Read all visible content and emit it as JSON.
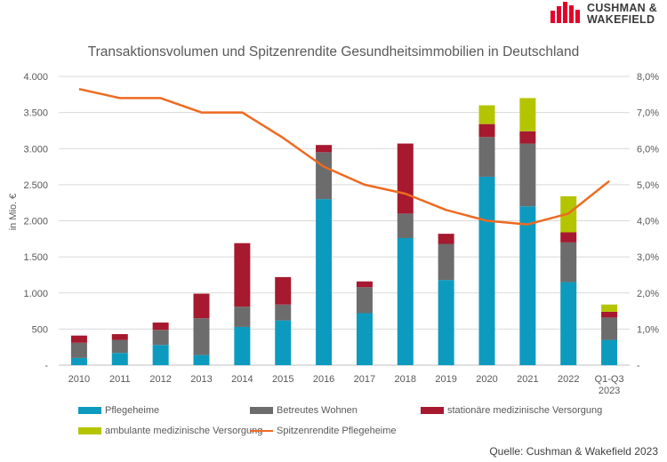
{
  "brand": {
    "name_line1": "CUSHMAN &",
    "name_line2": "WAKEFIELD",
    "color": "#E4002B"
  },
  "source": "Quelle: Cushman & Wakefield 2023",
  "chart_data": {
    "type": "bar",
    "stacked": true,
    "title": "Transaktionsvolumen und Spitzenrendite Gesundheitsimmobilien in Deutschland",
    "ylabel": "in Mio. €",
    "ylim": [
      0,
      4000
    ],
    "y_ticks": [
      0,
      500,
      1000,
      1500,
      2000,
      2500,
      3000,
      3500,
      4000
    ],
    "y_tick_labels": [
      "-",
      "500",
      "1.000",
      "1.500",
      "2.000",
      "2.500",
      "3.000",
      "3.500",
      "4.000"
    ],
    "y2lim": [
      0,
      8
    ],
    "y2_ticks": [
      0,
      1,
      2,
      3,
      4,
      5,
      6,
      7,
      8
    ],
    "y2_tick_labels": [
      "-",
      "1,0%",
      "2,0%",
      "3,0%",
      "4,0%",
      "5,0%",
      "6,0%",
      "7,0%",
      "8,0%"
    ],
    "grid": true,
    "legend_position": "bottom",
    "categories": [
      "2010",
      "2011",
      "2012",
      "2013",
      "2014",
      "2015",
      "2016",
      "2017",
      "2018",
      "2019",
      "2020",
      "2021",
      "2022",
      "Q1-Q3|2023"
    ],
    "series": [
      {
        "name": "Pflegeheime",
        "color": "#0C9BBF",
        "values": [
          100,
          170,
          280,
          140,
          530,
          620,
          2300,
          720,
          1760,
          1180,
          2610,
          2200,
          1150,
          350
        ]
      },
      {
        "name": "Betreutes Wohnen",
        "color": "#6C6C6C",
        "values": [
          210,
          180,
          210,
          510,
          280,
          220,
          650,
          360,
          340,
          500,
          550,
          870,
          550,
          310
        ]
      },
      {
        "name": "stationäre medizinische Versorgung",
        "color": "#A6192E",
        "values": [
          100,
          80,
          100,
          340,
          880,
          380,
          100,
          80,
          970,
          140,
          180,
          170,
          140,
          80
        ]
      },
      {
        "name": "ambulante medizinische Versorgung",
        "color": "#B4C500",
        "values": [
          0,
          0,
          0,
          0,
          0,
          0,
          0,
          0,
          0,
          0,
          260,
          460,
          500,
          100
        ]
      }
    ],
    "line_series": {
      "name": "Spitzenrendite Pflegeheime",
      "color": "#ED6A21",
      "axis": "right",
      "values": [
        7.65,
        7.4,
        7.4,
        7.0,
        7.0,
        6.3,
        5.5,
        5.0,
        4.75,
        4.3,
        4.0,
        3.9,
        4.2,
        5.1
      ]
    }
  }
}
